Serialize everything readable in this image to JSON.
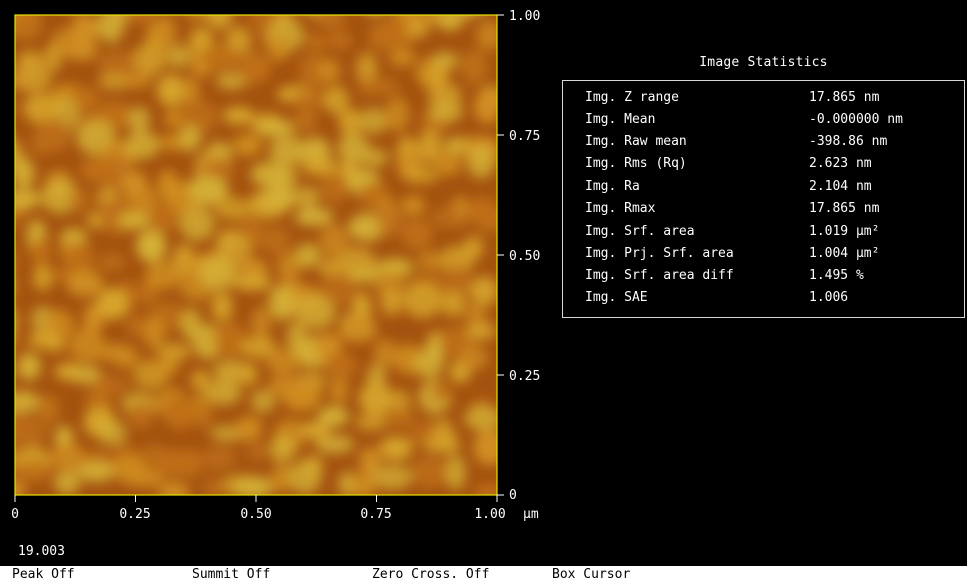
{
  "afm_image": {
    "border_color": "#e8e200",
    "colormap": [
      "#6d3808",
      "#a0500e",
      "#c07018",
      "#d08e20",
      "#d6a42a",
      "#d4b035"
    ],
    "x_ticks": [
      "0",
      "0.25",
      "0.50",
      "0.75",
      "1.00"
    ],
    "x_unit": "µm",
    "y_ticks": [
      "1.00",
      "0.75",
      "0.50",
      "0.25",
      "0"
    ],
    "z_scale_value": "19.003"
  },
  "stats": {
    "title": "Image Statistics",
    "rows": [
      {
        "label": "Img. Z range",
        "value": "17.865 nm"
      },
      {
        "label": "Img. Mean",
        "value": "-0.000000 nm"
      },
      {
        "label": "Img. Raw mean",
        "value": "-398.86 nm"
      },
      {
        "label": "Img. Rms (Rq)",
        "value": "2.623 nm"
      },
      {
        "label": "Img. Ra",
        "value": "2.104 nm"
      },
      {
        "label": "Img. Rmax",
        "value": "17.865 nm"
      },
      {
        "label": "Img. Srf. area",
        "value": "1.019 µm²"
      },
      {
        "label": "Img. Prj. Srf. area",
        "value": "1.004 µm²"
      },
      {
        "label": "Img. Srf. area diff",
        "value": "1.495 %"
      },
      {
        "label": "Img. SAE",
        "value": "1.006"
      }
    ]
  },
  "bottom_bar": {
    "peak": "Peak Off",
    "summit": "Summit Off",
    "zero_cross": "Zero Cross. Off",
    "box_cursor": "Box Cursor"
  }
}
